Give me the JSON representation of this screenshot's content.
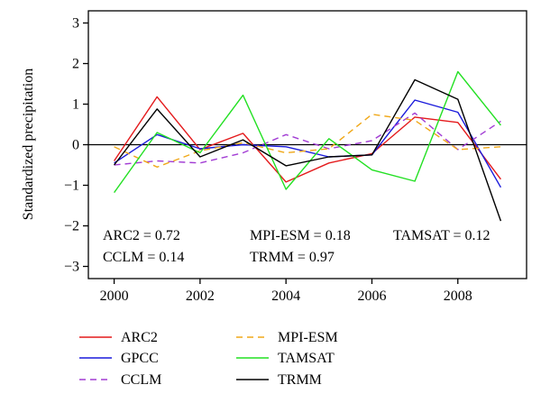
{
  "chart_data": {
    "type": "line",
    "title": "",
    "xlabel": "",
    "ylabel": "Standardized precipitation",
    "xlim": [
      1999.4,
      2009.6
    ],
    "ylim": [
      -3.3,
      3.3
    ],
    "xticks": [
      "2000",
      "2002",
      "2004",
      "2006",
      "2008"
    ],
    "yticks": [
      "3",
      "2",
      "1",
      "0",
      "−1",
      "−2",
      "−3"
    ],
    "x": [
      2000,
      2001,
      2002,
      2003,
      2004,
      2005,
      2006,
      2007,
      2008,
      2009
    ],
    "zero_line": true,
    "grid": false,
    "legend_position": "bottom",
    "series": [
      {
        "name": "ARC2",
        "color": "#e41a1c",
        "dash": "solid",
        "values": [
          -0.4,
          1.18,
          -0.12,
          0.28,
          -0.92,
          -0.45,
          -0.22,
          0.68,
          0.55,
          -0.85
        ]
      },
      {
        "name": "GPCC",
        "color": "#1a1adb",
        "dash": "solid",
        "values": [
          -0.45,
          0.25,
          -0.1,
          0.0,
          -0.05,
          -0.3,
          -0.25,
          1.1,
          0.8,
          -1.05
        ]
      },
      {
        "name": "CCLM",
        "color": "#a23cd4",
        "dash": "dashed",
        "values": [
          -0.5,
          -0.4,
          -0.45,
          -0.2,
          0.25,
          -0.1,
          0.1,
          0.78,
          -0.12,
          0.58
        ]
      },
      {
        "name": "MPI-ESM",
        "color": "#f0a818",
        "dash": "dashed",
        "values": [
          -0.05,
          -0.55,
          -0.15,
          0.05,
          -0.2,
          -0.1,
          0.75,
          0.6,
          -0.12,
          -0.05
        ]
      },
      {
        "name": "TAMSAT",
        "color": "#22e022",
        "dash": "solid",
        "values": [
          -1.18,
          0.3,
          -0.2,
          1.22,
          -1.1,
          0.15,
          -0.62,
          -0.9,
          1.8,
          0.48
        ]
      },
      {
        "name": "TRMM",
        "color": "#000000",
        "dash": "solid",
        "values": [
          -0.5,
          0.88,
          -0.3,
          0.12,
          -0.52,
          -0.3,
          -0.25,
          1.6,
          1.12,
          -1.88
        ]
      }
    ],
    "annotations": [
      "ARC2 = 0.72",
      "CCLM = 0.14",
      "MPI-ESM = 0.18",
      "TRMM = 0.97",
      "TAMSAT = 0.12"
    ]
  }
}
